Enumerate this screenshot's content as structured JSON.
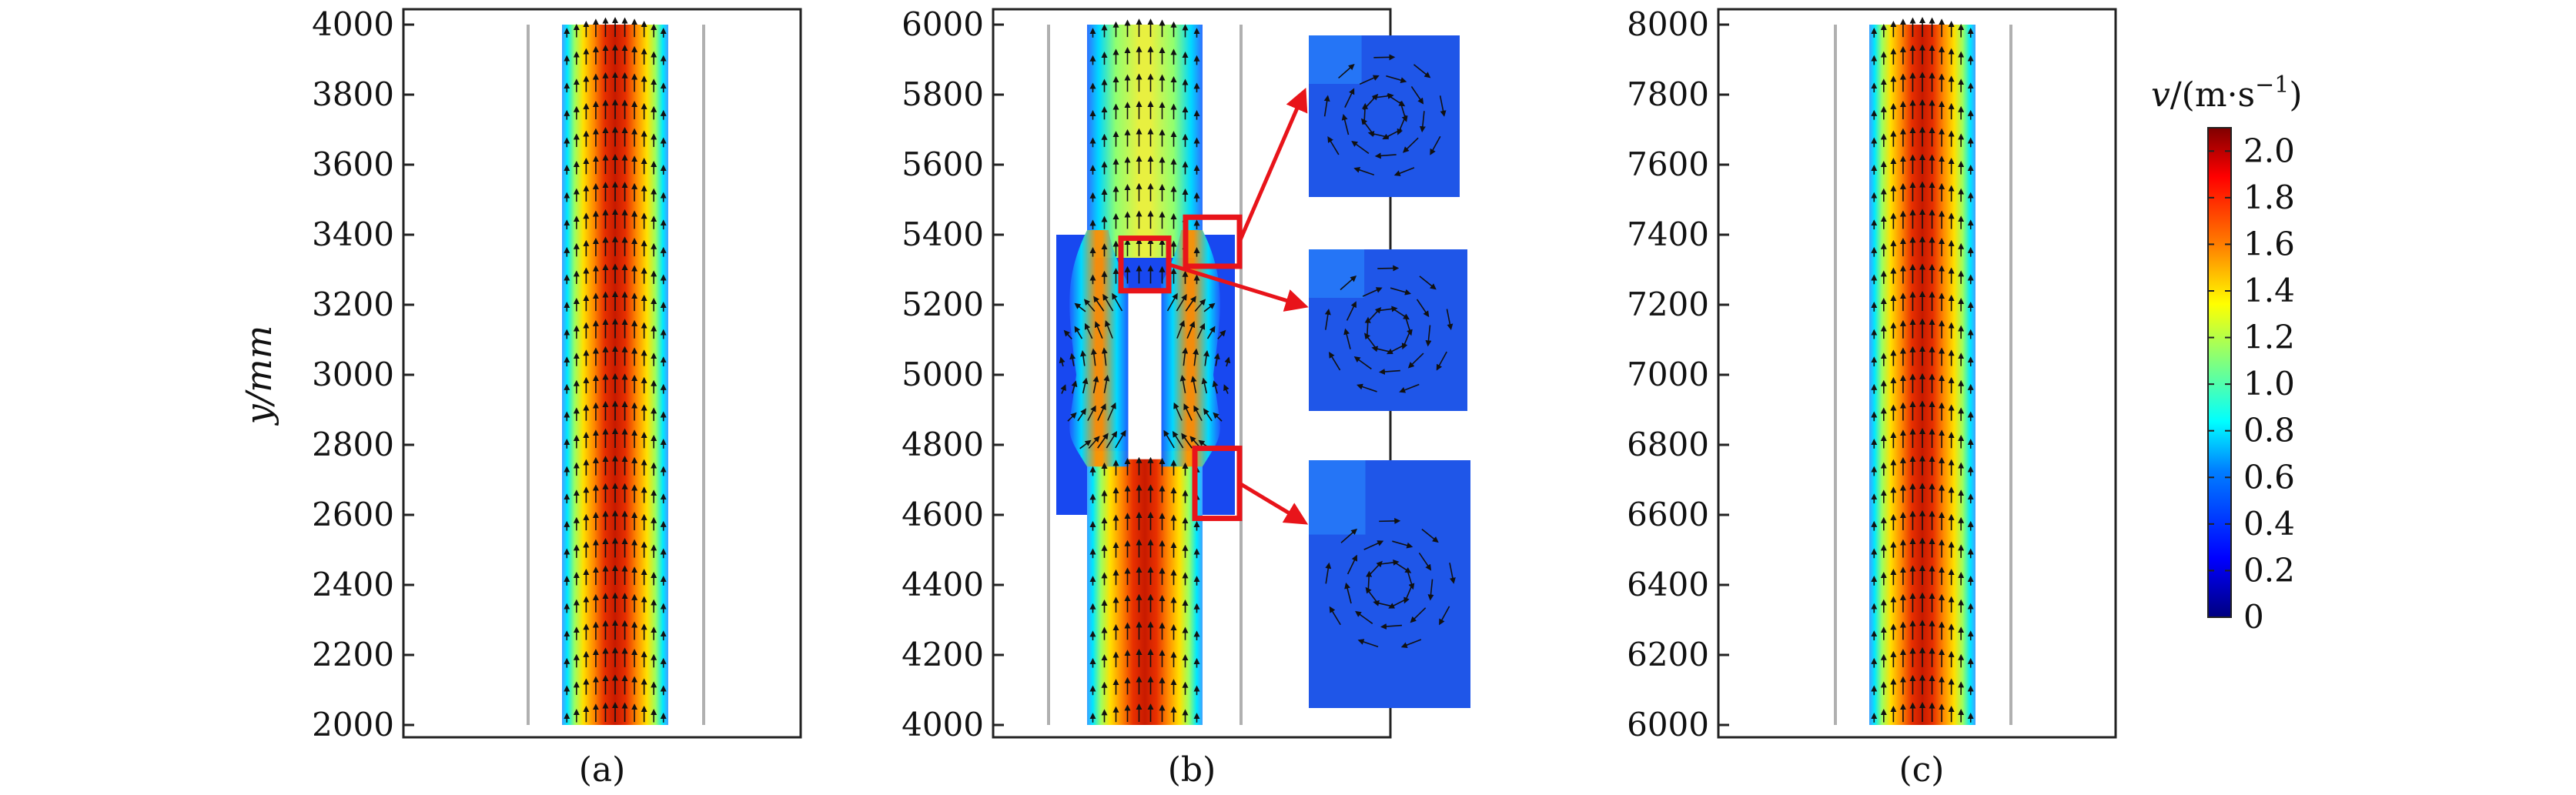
{
  "chart_data": [
    {
      "type": "heatmap",
      "panel_label": "(a)",
      "ylabel": "y/mm",
      "ylim": [
        2000,
        4000
      ],
      "yticks": [
        "4000",
        "3800",
        "3600",
        "3400",
        "3200",
        "3000",
        "2800",
        "2600",
        "2400",
        "2200",
        "2000"
      ],
      "field": "velocity magnitude with flow-direction arrows, straight channel",
      "peak_velocity": 2.0
    },
    {
      "type": "heatmap",
      "panel_label": "(b)",
      "ylim": [
        4000,
        6000
      ],
      "yticks": [
        "6000",
        "5800",
        "5600",
        "5400",
        "5200",
        "5000",
        "4800",
        "4600",
        "4400",
        "4200",
        "4000"
      ],
      "field": "velocity magnitude around an obstruction in a widened chamber, with three zoomed recirculation insets",
      "peak_velocity": 2.0,
      "chamber_y": [
        4600,
        5400
      ],
      "obstacle_y": [
        4760,
        5240
      ],
      "insets": [
        {
          "target_y": [
            5310,
            5450
          ],
          "side": "right-wall"
        },
        {
          "target_y": [
            5240,
            5390
          ],
          "side": "obstacle-top"
        },
        {
          "target_y": [
            4590,
            4790
          ],
          "side": "right-wall"
        }
      ]
    },
    {
      "type": "heatmap",
      "panel_label": "(c)",
      "ylim": [
        6000,
        8000
      ],
      "yticks": [
        "8000",
        "7800",
        "7600",
        "7400",
        "7200",
        "7000",
        "6800",
        "6600",
        "6400",
        "6200",
        "6000"
      ],
      "field": "velocity magnitude with flow-direction arrows, straight channel",
      "peak_velocity": 2.0
    }
  ],
  "colorbar": {
    "title_var": "v",
    "title_unit": "/(m·s",
    "title_exp": "−1",
    "title_close": ")",
    "range": [
      0,
      2.1
    ],
    "ticks": [
      {
        "label": "2.0",
        "value": 2.0
      },
      {
        "label": "1.8",
        "value": 1.8
      },
      {
        "label": "1.6",
        "value": 1.6
      },
      {
        "label": "1.4",
        "value": 1.4
      },
      {
        "label": "1.2",
        "value": 1.2
      },
      {
        "label": "1.0",
        "value": 1.0
      },
      {
        "label": "0.8",
        "value": 0.8
      },
      {
        "label": "0.6",
        "value": 0.6
      },
      {
        "label": "0.4",
        "value": 0.4
      },
      {
        "label": "0.2",
        "value": 0.2
      },
      {
        "label": "0",
        "value": 0
      }
    ],
    "colormap": [
      "#00007f",
      "#0000ff",
      "#007fff",
      "#00ffff",
      "#7fff7f",
      "#ffff00",
      "#ff7f00",
      "#ff0000",
      "#7f0000"
    ]
  },
  "colors": {
    "inset_box": "#e8141a",
    "wall_line": "#b0b0b0",
    "arrow": "#111111"
  }
}
